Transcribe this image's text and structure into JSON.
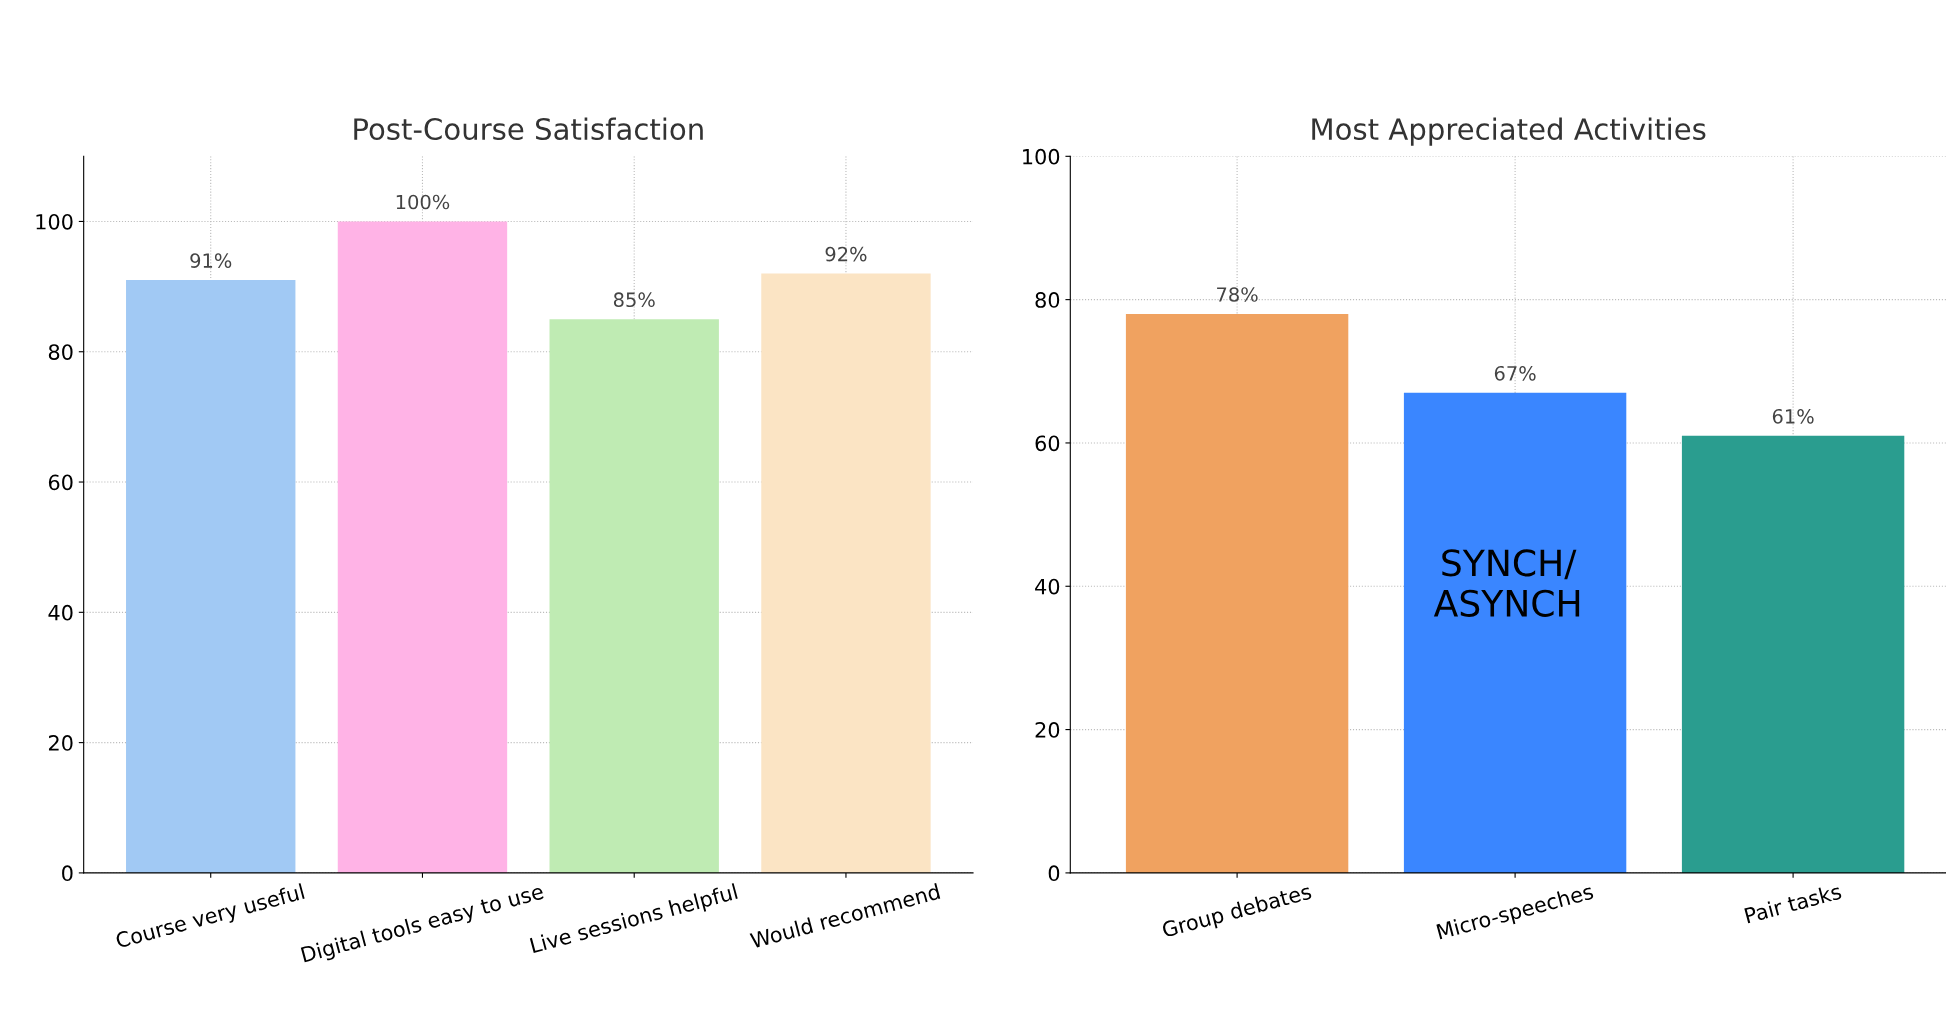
{
  "chart_data": [
    {
      "type": "bar",
      "title": "Post-Course Satisfaction",
      "categories": [
        "Course very useful",
        "Digital tools easy to use",
        "Live sessions helpful",
        "Would recommend"
      ],
      "values": [
        91,
        100,
        85,
        92
      ],
      "colors": [
        "#a1c9f4",
        "#ffb3e6",
        "#bfebb3",
        "#fbe4c4"
      ],
      "value_labels": [
        "91%",
        "100%",
        "85%",
        "92%"
      ],
      "ylim": [
        0,
        110
      ],
      "yticks": [
        0,
        20,
        40,
        60,
        80,
        100
      ],
      "grid": true
    },
    {
      "type": "bar",
      "title": "Most Appreciated Activities",
      "categories": [
        "Group debates",
        "Micro-speeches",
        "Pair tasks"
      ],
      "values": [
        78,
        67,
        61
      ],
      "colors": [
        "#f0a260",
        "#3a86ff",
        "#2a9d8f"
      ],
      "value_labels": [
        "78%",
        "67%",
        "61%"
      ],
      "ylim": [
        0,
        100
      ],
      "yticks": [
        0,
        20,
        40,
        60,
        80,
        100
      ],
      "grid": true,
      "annotations": [
        "SYNCH/\nASYNCH"
      ]
    }
  ]
}
